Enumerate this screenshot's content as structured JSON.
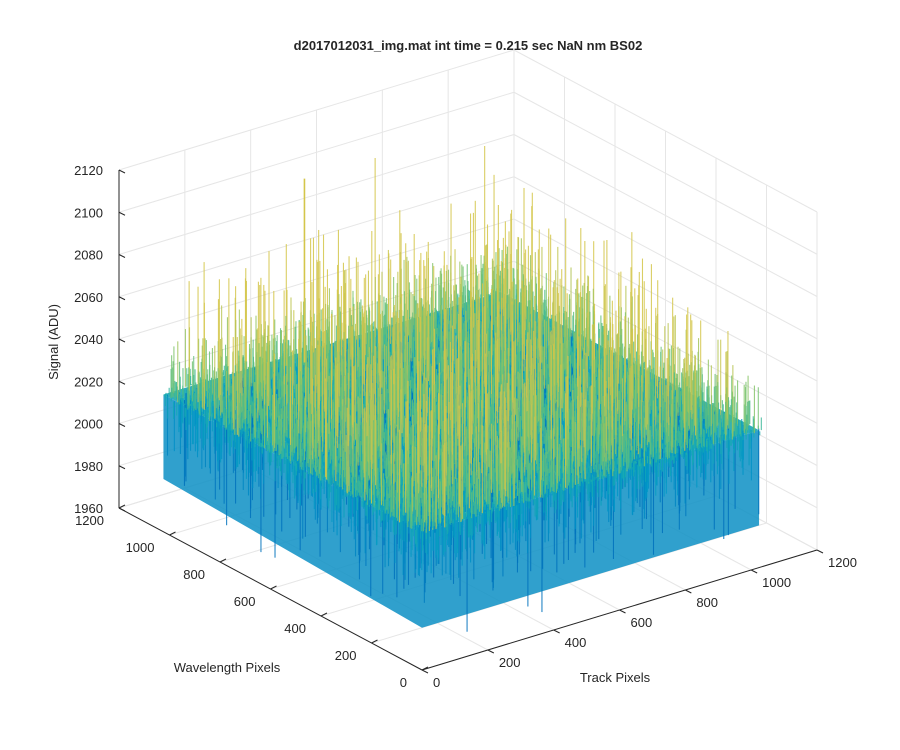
{
  "chart_data": {
    "type": "surface",
    "title": "d2017012031_img.mat int time = 0.215 sec  NaN nm BS02",
    "xlabel": "Track Pixels",
    "ylabel": "Wavelength Pixels",
    "zlabel": "Signal (ADU)",
    "xlim": [
      0,
      1200
    ],
    "ylim": [
      0,
      1200
    ],
    "zlim": [
      1960,
      2120
    ],
    "x_ticks": [
      "0",
      "200",
      "400",
      "600",
      "800",
      "1000",
      "1200"
    ],
    "y_ticks": [
      "0",
      "200",
      "400",
      "600",
      "800",
      "1000",
      "1200"
    ],
    "z_ticks": [
      "1960",
      "1980",
      "2000",
      "2020",
      "2040",
      "2060",
      "2080",
      "2100",
      "2120"
    ],
    "surface": {
      "x_extent": [
        0,
        1024
      ],
      "y_extent": [
        0,
        1024
      ],
      "mean_signal": 2025,
      "typical_min": 1975,
      "typical_max": 2080,
      "peak_max": 2112,
      "colormap": "parula"
    },
    "grid": true,
    "colors": {
      "low": "#0072bd",
      "mid": "#20b2aa",
      "high": "#d4c64a",
      "axis": "#262626",
      "grid": "#e6e6e6"
    }
  }
}
